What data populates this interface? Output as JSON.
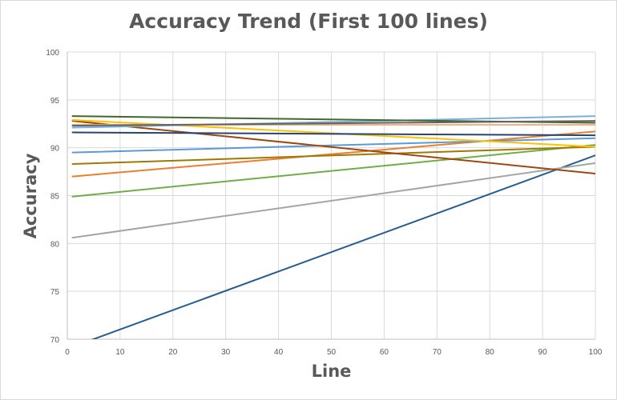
{
  "chart_data": {
    "type": "line",
    "title": "Accuracy Trend (First 100 lines)",
    "xlabel": "Line",
    "ylabel": "Accuracy",
    "xlim": [
      0,
      100
    ],
    "ylim": [
      70,
      100
    ],
    "xticks": [
      0,
      10,
      20,
      30,
      40,
      50,
      60,
      70,
      80,
      90,
      100
    ],
    "yticks": [
      70,
      75,
      80,
      85,
      90,
      95,
      100
    ],
    "grid": true,
    "legend": "none",
    "series": [
      {
        "color": "#255e91",
        "x": [
          1,
          100
        ],
        "y": [
          69.2,
          89.2
        ]
      },
      {
        "color": "#a5a5a5",
        "x": [
          1,
          100
        ],
        "y": [
          80.6,
          88.4
        ]
      },
      {
        "color": "#70ad47",
        "x": [
          1,
          100
        ],
        "y": [
          84.9,
          90.3
        ]
      },
      {
        "color": "#ed7d31",
        "x": [
          1,
          100
        ],
        "y": [
          87.0,
          91.7
        ]
      },
      {
        "color": "#9e7b00",
        "x": [
          1,
          100
        ],
        "y": [
          88.3,
          90.1
        ]
      },
      {
        "color": "#5b9bd5",
        "x": [
          1,
          100
        ],
        "y": [
          89.5,
          91.0
        ]
      },
      {
        "color": "#9e480e",
        "x": [
          1,
          100
        ],
        "y": [
          92.8,
          87.3
        ]
      },
      {
        "color": "#ffc000",
        "x": [
          1,
          100
        ],
        "y": [
          92.9,
          90.1
        ]
      },
      {
        "color": "#264478",
        "x": [
          1,
          100
        ],
        "y": [
          91.6,
          91.3
        ]
      },
      {
        "color": "#7cafdd",
        "x": [
          1,
          100
        ],
        "y": [
          92.1,
          93.3
        ]
      },
      {
        "color": "#f4b183",
        "x": [
          1,
          100
        ],
        "y": [
          92.4,
          92.4
        ]
      },
      {
        "color": "#43682b",
        "x": [
          1,
          100
        ],
        "y": [
          93.3,
          92.6
        ]
      },
      {
        "color": "#636363",
        "x": [
          1,
          100
        ],
        "y": [
          92.3,
          92.8
        ]
      }
    ]
  }
}
